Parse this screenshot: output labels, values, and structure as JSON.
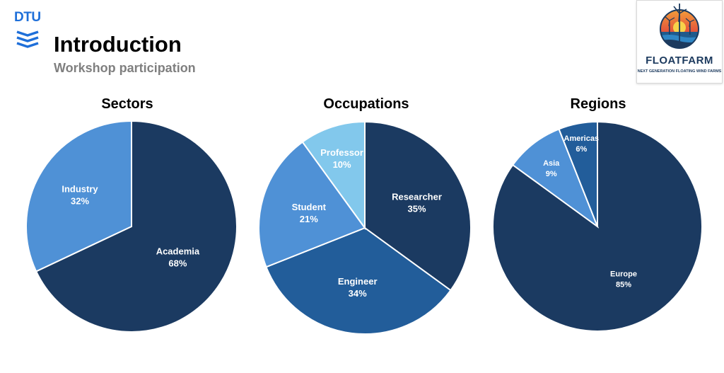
{
  "header": {
    "logo_text": "DTU",
    "title": "Introduction",
    "subtitle": "Workshop participation"
  },
  "brand": {
    "name": "FLOATFARM",
    "tagline": "NEXT GENERATION FLOATING WIND FARMS"
  },
  "colors": {
    "dark": "#1b3a61",
    "medium": "#225d9a",
    "light": "#4f91d6",
    "lighter": "#82c8ec",
    "dtu_blue": "#1e6fd9"
  },
  "chart_data": [
    {
      "type": "pie",
      "title": "Sectors",
      "slices": [
        {
          "label": "Academia",
          "value": 68,
          "display": "68%",
          "color": "#1b3a61"
        },
        {
          "label": "Industry",
          "value": 32,
          "display": "32%",
          "color": "#4f91d6"
        }
      ]
    },
    {
      "type": "pie",
      "title": "Occupations",
      "slices": [
        {
          "label": "Researcher",
          "value": 35,
          "display": "35%",
          "color": "#1b3a61"
        },
        {
          "label": "Engineer",
          "value": 34,
          "display": "34%",
          "color": "#225d9a"
        },
        {
          "label": "Student",
          "value": 21,
          "display": "21%",
          "color": "#4f91d6"
        },
        {
          "label": "Professor",
          "value": 10,
          "display": "10%",
          "color": "#82c8ec"
        }
      ]
    },
    {
      "type": "pie",
      "title": "Regions",
      "slices": [
        {
          "label": "Europe",
          "value": 85,
          "display": "85%",
          "color": "#1b3a61"
        },
        {
          "label": "Asia",
          "value": 9,
          "display": "9%",
          "color": "#4f91d6"
        },
        {
          "label": "Americas",
          "value": 6,
          "display": "6%",
          "color": "#225d9a"
        }
      ]
    }
  ]
}
